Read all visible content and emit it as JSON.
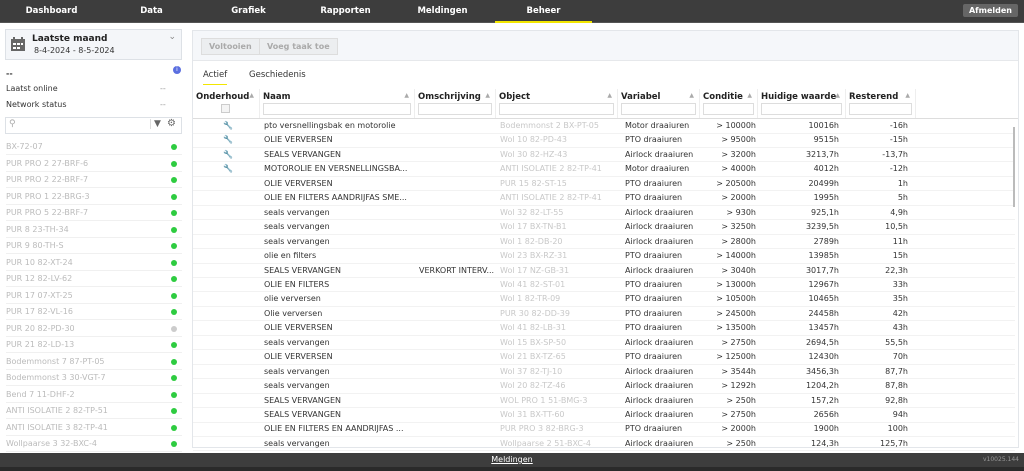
{
  "nav": {
    "items": [
      "Dashboard",
      "Data",
      "Grafiek",
      "Rapporten",
      "Meldingen",
      "Beheer"
    ],
    "active": "Beheer",
    "logout": "Afmelden"
  },
  "accent": "#f2e600",
  "sidebar": {
    "period_title": "Laatste maand",
    "period_range": "8-4-2024 - 8-5-2024",
    "selected": "--",
    "last_online_label": "Laatst online",
    "last_online_value": "--",
    "network_label": "Network status",
    "network_value": "--",
    "search_placeholder": "",
    "items": [
      {
        "name": "BX-72-07",
        "status": "online"
      },
      {
        "name": "PUR PRO 2 27-BRF-6",
        "status": "online"
      },
      {
        "name": "PUR PRO 2 22-BRF-7",
        "status": "online"
      },
      {
        "name": "PUR PRO 1 22-BRG-3",
        "status": "online"
      },
      {
        "name": "PUR PRO 5 22-BRF-7",
        "status": "online"
      },
      {
        "name": "PUR 8 23-TH-34",
        "status": "online"
      },
      {
        "name": "PUR 9 80-TH-S",
        "status": "online"
      },
      {
        "name": "PUR 10 82-XT-24",
        "status": "online"
      },
      {
        "name": "PUR 12 82-LV-62",
        "status": "online"
      },
      {
        "name": "PUR 17 07-XT-25",
        "status": "online"
      },
      {
        "name": "PUR 17 82-VL-16",
        "status": "online"
      },
      {
        "name": "PUR 20 82-PD-30",
        "status": "offline"
      },
      {
        "name": "PUR 21 82-LD-13",
        "status": "online"
      },
      {
        "name": "Bodemmonst 7 87-PT-05",
        "status": "online"
      },
      {
        "name": "Bodemmonst 3 30-VGT-7",
        "status": "online"
      },
      {
        "name": "Bend 7 11-DHF-2",
        "status": "online"
      },
      {
        "name": "ANTI ISOLATIE 2 82-TP-51",
        "status": "online"
      },
      {
        "name": "ANTI ISOLATIE 3 82-TP-41",
        "status": "online"
      },
      {
        "name": "Wollpaarse 3 32-BXC-4",
        "status": "online"
      }
    ]
  },
  "toolbar": {
    "complete": "Voltooien",
    "add_task": "Voeg taak toe"
  },
  "tabs": [
    "Actief",
    "Geschiedenis"
  ],
  "table": {
    "columns": [
      "Onderhoud",
      "Naam",
      "Omschrijving",
      "Object",
      "Variabel",
      "Conditie",
      "Huidige waarde",
      "Resterend"
    ],
    "rows": [
      {
        "due": true,
        "naam": "pto versnellingsbak en motorolie",
        "omschrijving": "",
        "object": "Bodemmonst 2 BX-PT-05",
        "variabel": "Motor draaiuren",
        "conditie": "> 10000h",
        "waarde": "10016h",
        "resterend": "-16h"
      },
      {
        "due": true,
        "naam": "OLIE VERVERSEN",
        "omschrijving": "",
        "object": "Wol 10 82-PD-43",
        "variabel": "PTO draaiuren",
        "conditie": "> 9500h",
        "waarde": "9515h",
        "resterend": "-15h"
      },
      {
        "due": true,
        "naam": "SEALS VERVANGEN",
        "omschrijving": "",
        "object": "Wol 30 82-HZ-43",
        "variabel": "Airlock draaiuren",
        "conditie": "> 3200h",
        "waarde": "3213,7h",
        "resterend": "-13,7h"
      },
      {
        "due": true,
        "naam": "MOTOROLIE EN VERSNELLINGSBA...",
        "omschrijving": "",
        "object": "ANTI ISOLATIE 2 82-TP-41",
        "variabel": "Motor draaiuren",
        "conditie": "> 4000h",
        "waarde": "4012h",
        "resterend": "-12h"
      },
      {
        "due": false,
        "naam": "OLIE VERVERSEN",
        "omschrijving": "",
        "object": "PUR 15 82-ST-15",
        "variabel": "PTO draaiuren",
        "conditie": "> 20500h",
        "waarde": "20499h",
        "resterend": "1h"
      },
      {
        "due": false,
        "naam": "OLIE EN FILTERS AANDRIJFAS SME...",
        "omschrijving": "",
        "object": "ANTI ISOLATIE 2 82-TP-41",
        "variabel": "PTO draaiuren",
        "conditie": "> 2000h",
        "waarde": "1995h",
        "resterend": "5h"
      },
      {
        "due": false,
        "naam": "seals vervangen",
        "omschrijving": "",
        "object": "Wol 32 82-LT-55",
        "variabel": "Airlock draaiuren",
        "conditie": "> 930h",
        "waarde": "925,1h",
        "resterend": "4,9h"
      },
      {
        "due": false,
        "naam": "seals vervangen",
        "omschrijving": "",
        "object": "Wol 17 BX-TN-B1",
        "variabel": "Airlock draaiuren",
        "conditie": "> 3250h",
        "waarde": "3239,5h",
        "resterend": "10,5h"
      },
      {
        "due": false,
        "naam": "seals vervangen",
        "omschrijving": "",
        "object": "Wol 1 82-DB-20",
        "variabel": "Airlock draaiuren",
        "conditie": "> 2800h",
        "waarde": "2789h",
        "resterend": "11h"
      },
      {
        "due": false,
        "naam": "olie en filters",
        "omschrijving": "",
        "object": "Wol 23 BX-RZ-31",
        "variabel": "PTO draaiuren",
        "conditie": "> 14000h",
        "waarde": "13985h",
        "resterend": "15h"
      },
      {
        "due": false,
        "naam": "SEALS VERVANGEN",
        "omschrijving": "VERKORT INTERV...",
        "object": "Wol 17 NZ-GB-31",
        "variabel": "Airlock draaiuren",
        "conditie": "> 3040h",
        "waarde": "3017,7h",
        "resterend": "22,3h"
      },
      {
        "due": false,
        "naam": "OLIE EN FILTERS",
        "omschrijving": "",
        "object": "Wol 41 82-ST-01",
        "variabel": "PTO draaiuren",
        "conditie": "> 13000h",
        "waarde": "12967h",
        "resterend": "33h"
      },
      {
        "due": false,
        "naam": "olie verversen",
        "omschrijving": "",
        "object": "Wol 1 82-TR-09",
        "variabel": "PTO draaiuren",
        "conditie": "> 10500h",
        "waarde": "10465h",
        "resterend": "35h"
      },
      {
        "due": false,
        "naam": "Olie verversen",
        "omschrijving": "",
        "object": "PUR 30 82-DD-39",
        "variabel": "PTO draaiuren",
        "conditie": "> 24500h",
        "waarde": "24458h",
        "resterend": "42h"
      },
      {
        "due": false,
        "naam": "OLIE VERVERSEN",
        "omschrijving": "",
        "object": "Wol 41 82-LB-31",
        "variabel": "PTO draaiuren",
        "conditie": "> 13500h",
        "waarde": "13457h",
        "resterend": "43h"
      },
      {
        "due": false,
        "naam": "seals vervangen",
        "omschrijving": "",
        "object": "Wol 15 BX-SP-50",
        "variabel": "Airlock draaiuren",
        "conditie": "> 2750h",
        "waarde": "2694,5h",
        "resterend": "55,5h"
      },
      {
        "due": false,
        "naam": "OLIE VERVERSEN",
        "omschrijving": "",
        "object": "Wol 21 BX-TZ-65",
        "variabel": "PTO draaiuren",
        "conditie": "> 12500h",
        "waarde": "12430h",
        "resterend": "70h"
      },
      {
        "due": false,
        "naam": "seals vervangen",
        "omschrijving": "",
        "object": "Wol 37 82-TJ-10",
        "variabel": "Airlock draaiuren",
        "conditie": "> 3544h",
        "waarde": "3456,3h",
        "resterend": "87,7h"
      },
      {
        "due": false,
        "naam": "seals vervangen",
        "omschrijving": "",
        "object": "Wol 20 82-TZ-46",
        "variabel": "Airlock draaiuren",
        "conditie": "> 1292h",
        "waarde": "1204,2h",
        "resterend": "87,8h"
      },
      {
        "due": false,
        "naam": "SEALS VERVANGEN",
        "omschrijving": "",
        "object": "WOL PRO 1 51-BMG-3",
        "variabel": "Airlock draaiuren",
        "conditie": "> 250h",
        "waarde": "157,2h",
        "resterend": "92,8h"
      },
      {
        "due": false,
        "naam": "SEALS VERVANGEN",
        "omschrijving": "",
        "object": "Wol 31 BX-TT-60",
        "variabel": "Airlock draaiuren",
        "conditie": "> 2750h",
        "waarde": "2656h",
        "resterend": "94h"
      },
      {
        "due": false,
        "naam": "OLIE EN FILTERS EN AANDRIJFAS ...",
        "omschrijving": "",
        "object": "PUR PRO 3 82-BRG-3",
        "variabel": "PTO draaiuren",
        "conditie": "> 2000h",
        "waarde": "1900h",
        "resterend": "100h"
      },
      {
        "due": false,
        "naam": "seals vervangen",
        "omschrijving": "",
        "object": "Wollpaarse 2 51-BXC-4",
        "variabel": "Airlock draaiuren",
        "conditie": "> 250h",
        "waarde": "124,3h",
        "resterend": "125,7h"
      }
    ]
  },
  "footer": {
    "link": "Meldingen",
    "version": "v10025.144"
  }
}
